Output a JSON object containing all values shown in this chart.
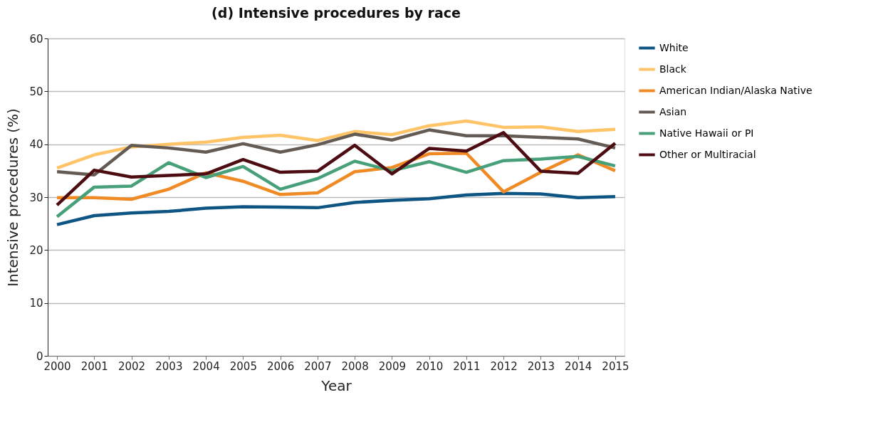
{
  "chart_data": {
    "type": "line",
    "title": "(d) Intensive procedures by race",
    "xlabel": "Year",
    "ylabel": "Intensive procedures (%)",
    "categories": [
      "2000",
      "2001",
      "2002",
      "2003",
      "2004",
      "2005",
      "2006",
      "2007",
      "2008",
      "2009",
      "2010",
      "2011",
      "2012",
      "2013",
      "2014",
      "2015"
    ],
    "ylim": [
      0,
      60
    ],
    "yticks": [
      0,
      10,
      20,
      30,
      40,
      50,
      60
    ],
    "grid": "y",
    "legend": "right",
    "marker": "none",
    "line_style": "solid",
    "series": [
      {
        "name": "White",
        "color": "#0f5584",
        "values": [
          24.8,
          26.5,
          27.0,
          27.3,
          27.9,
          28.2,
          28.1,
          28.0,
          29.0,
          29.4,
          29.7,
          30.4,
          30.7,
          30.6,
          29.9,
          30.1
        ]
      },
      {
        "name": "Black",
        "color": "#fec467",
        "values": [
          35.5,
          38.0,
          39.5,
          40.0,
          40.4,
          41.3,
          41.7,
          40.7,
          42.4,
          41.8,
          43.5,
          44.4,
          43.2,
          43.3,
          42.4,
          42.8
        ]
      },
      {
        "name": "American Indian/Alaska Native",
        "color": "#ef8a25",
        "values": [
          29.9,
          29.9,
          29.6,
          31.5,
          34.6,
          33.0,
          30.5,
          30.8,
          34.8,
          35.6,
          38.2,
          38.3,
          31.0,
          34.7,
          38.0,
          35.0
        ]
      },
      {
        "name": "Asian",
        "color": "#655b55",
        "values": [
          34.8,
          34.2,
          39.8,
          39.3,
          38.5,
          40.1,
          38.5,
          39.9,
          41.9,
          40.8,
          42.7,
          41.6,
          41.6,
          41.3,
          41.0,
          39.3
        ]
      },
      {
        "name": "Native Hawaii or PI",
        "color": "#48a07a",
        "values": [
          26.3,
          31.9,
          32.1,
          36.5,
          33.7,
          35.8,
          31.5,
          33.5,
          36.8,
          35.0,
          36.7,
          34.7,
          36.9,
          37.2,
          37.7,
          35.9
        ]
      },
      {
        "name": "Other or Multiracial",
        "color": "#4d0b12",
        "values": [
          28.5,
          35.1,
          33.8,
          34.1,
          34.4,
          37.1,
          34.7,
          34.9,
          39.8,
          34.4,
          39.2,
          38.7,
          42.2,
          34.9,
          34.5,
          40.2
        ]
      }
    ]
  }
}
